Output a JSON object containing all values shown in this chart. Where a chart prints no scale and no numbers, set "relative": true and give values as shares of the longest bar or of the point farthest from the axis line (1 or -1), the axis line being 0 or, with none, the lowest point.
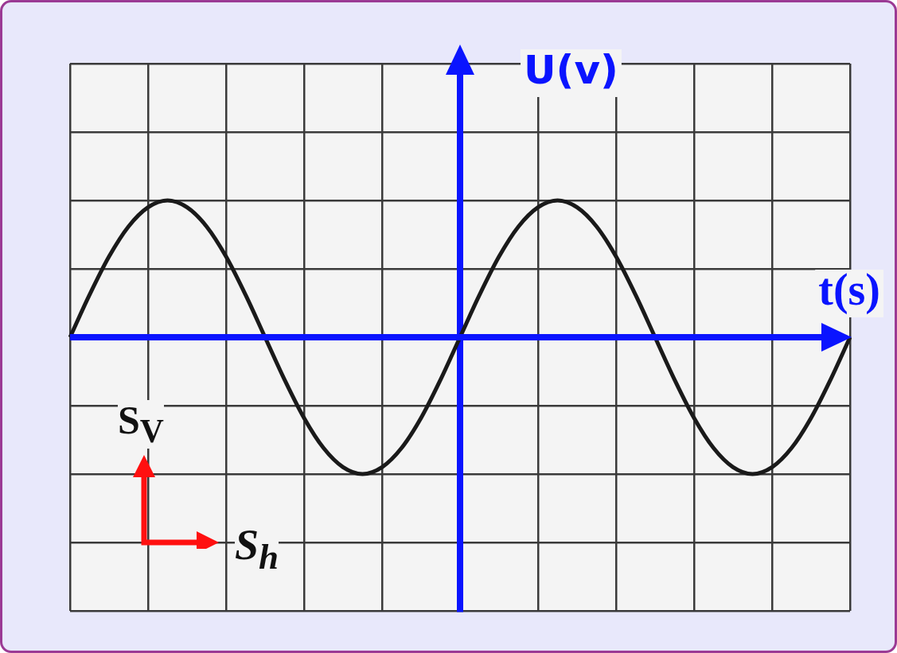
{
  "chart_data": {
    "type": "line",
    "relative": true,
    "grid": true,
    "xlabel": "t(s)",
    "ylabel": "U(v)",
    "color": "#1a1a1a",
    "categories": [
      null,
      null,
      null,
      null,
      null,
      null,
      null,
      null,
      null,
      null,
      null,
      null,
      null,
      null,
      null,
      null,
      null,
      null,
      null,
      null,
      null,
      null,
      null,
      null,
      null,
      null,
      null,
      null,
      null,
      null,
      null,
      null,
      null,
      null,
      null,
      null,
      null,
      null,
      null,
      null,
      null
    ],
    "values": [
      0,
      0.31,
      0.59,
      0.81,
      0.95,
      1,
      0.95,
      0.81,
      0.59,
      0.31,
      0,
      -0.31,
      -0.59,
      -0.81,
      -0.95,
      -1,
      -0.95,
      -0.81,
      -0.59,
      -0.31,
      0,
      0.31,
      0.59,
      0.81,
      0.95,
      1,
      0.95,
      0.81,
      0.59,
      0.31,
      0,
      -0.31,
      -0.59,
      -0.81,
      -0.95,
      -1,
      -0.95,
      -0.81,
      -0.59,
      -0.31,
      0
    ],
    "ref_lines": [
      {
        "axis": "y",
        "value": 0,
        "color": "#0a14ff"
      }
    ],
    "annotations": [
      "S$_{V}$",
      "S$_{h}$"
    ]
  }
}
